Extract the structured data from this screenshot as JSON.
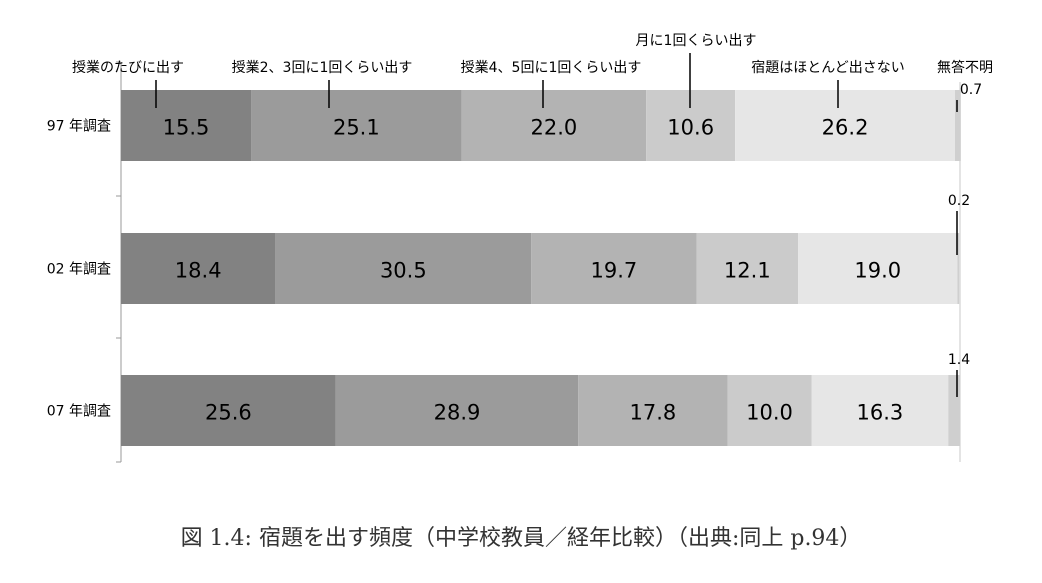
{
  "chart_data": {
    "type": "bar",
    "orientation": "horizontal-stacked-percent",
    "categories": [
      "97 年調査",
      "02 年調査",
      "07 年調査"
    ],
    "series": [
      {
        "name": "授業のたびに出す",
        "values": [
          15.5,
          18.4,
          25.6
        ],
        "color": "#828282"
      },
      {
        "name": "授業2、3回に1回くらい出す",
        "values": [
          25.1,
          30.5,
          28.9
        ],
        "color": "#9b9b9b"
      },
      {
        "name": "授業4、5回に1回くらい出す",
        "values": [
          22.0,
          19.7,
          17.8
        ],
        "color": "#b3b3b3"
      },
      {
        "name": "月に1回くらい出す",
        "values": [
          10.6,
          12.1,
          10.0
        ],
        "color": "#cbcbcb"
      },
      {
        "name": "宿題はほとんど出さない",
        "values": [
          26.2,
          19.0,
          16.3
        ],
        "color": "#e6e6e6"
      },
      {
        "name": "無答不明",
        "values": [
          0.7,
          0.2,
          1.4
        ],
        "color": "#cfcfcf"
      }
    ],
    "data_labels": [
      [
        "15.5",
        "25.1",
        "22.0",
        "10.6",
        "26.2",
        "0.7"
      ],
      [
        "18.4",
        "30.5",
        "19.7",
        "12.1",
        "19.0",
        "0.2"
      ],
      [
        "25.6",
        "28.9",
        "17.8",
        "10.0",
        "16.3",
        "1.4"
      ]
    ],
    "xlim": [
      0,
      100
    ],
    "legend": "callouts-above-first-bar",
    "grid": false
  },
  "caption": "図 1.4:  宿題を出す頻度（中学校教員／経年比較）（出典:同上 p.94）"
}
